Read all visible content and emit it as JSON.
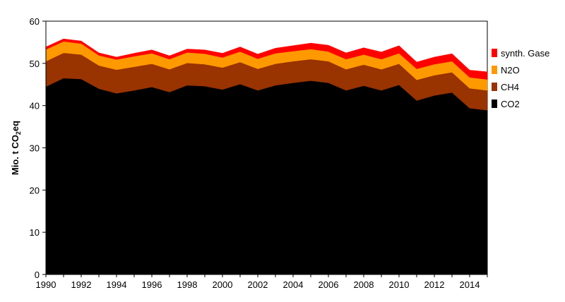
{
  "chart_data": {
    "type": "area",
    "stacked": true,
    "x": [
      1990,
      1991,
      1992,
      1993,
      1994,
      1995,
      1996,
      1997,
      1998,
      1999,
      2000,
      2001,
      2002,
      2003,
      2004,
      2005,
      2006,
      2007,
      2008,
      2009,
      2010,
      2011,
      2012,
      2013,
      2014,
      2015
    ],
    "xticks": [
      "1990",
      "1992",
      "1994",
      "1996",
      "1998",
      "2000",
      "2002",
      "2004",
      "2006",
      "2008",
      "2010",
      "2012",
      "2014"
    ],
    "ylim": [
      0,
      60
    ],
    "yticks": [
      "0",
      "10",
      "20",
      "30",
      "40",
      "50",
      "60"
    ],
    "ylabel_main": "Mio. t CO",
    "ylabel_sub": "2",
    "ylabel_tail": "eq",
    "legend_position": "right",
    "series": [
      {
        "name": "CO2",
        "color": "#000000",
        "values": [
          44.5,
          46.5,
          46.3,
          44.0,
          42.9,
          43.6,
          44.4,
          43.2,
          44.8,
          44.6,
          43.8,
          45.1,
          43.6,
          44.8,
          45.4,
          45.9,
          45.4,
          43.6,
          44.7,
          43.6,
          44.9,
          41.2,
          42.4,
          43.1,
          39.4,
          38.9
        ]
      },
      {
        "name": "CH4",
        "color": "#993300",
        "values": [
          6.0,
          6.0,
          5.8,
          5.5,
          5.6,
          5.6,
          5.5,
          5.4,
          5.3,
          5.2,
          5.2,
          5.2,
          5.1,
          5.1,
          5.1,
          5.1,
          5.1,
          5.0,
          5.0,
          5.0,
          5.0,
          4.9,
          4.8,
          4.8,
          4.7,
          4.7
        ]
      },
      {
        "name": "N2O",
        "color": "#ff9900",
        "values": [
          2.8,
          2.7,
          2.6,
          2.4,
          2.4,
          2.5,
          2.5,
          2.4,
          2.5,
          2.5,
          2.4,
          2.5,
          2.4,
          2.5,
          2.4,
          2.4,
          2.3,
          2.4,
          2.4,
          2.4,
          2.5,
          2.6,
          2.6,
          2.6,
          2.6,
          2.6
        ]
      },
      {
        "name": "synth. Gase",
        "color": "#ff0000",
        "values": [
          0.6,
          0.6,
          0.6,
          0.6,
          0.6,
          0.7,
          0.8,
          0.8,
          0.8,
          0.9,
          1.0,
          1.1,
          1.1,
          1.2,
          1.3,
          1.4,
          1.5,
          1.5,
          1.6,
          1.7,
          1.8,
          1.6,
          1.7,
          1.8,
          1.7,
          1.8
        ]
      }
    ]
  }
}
